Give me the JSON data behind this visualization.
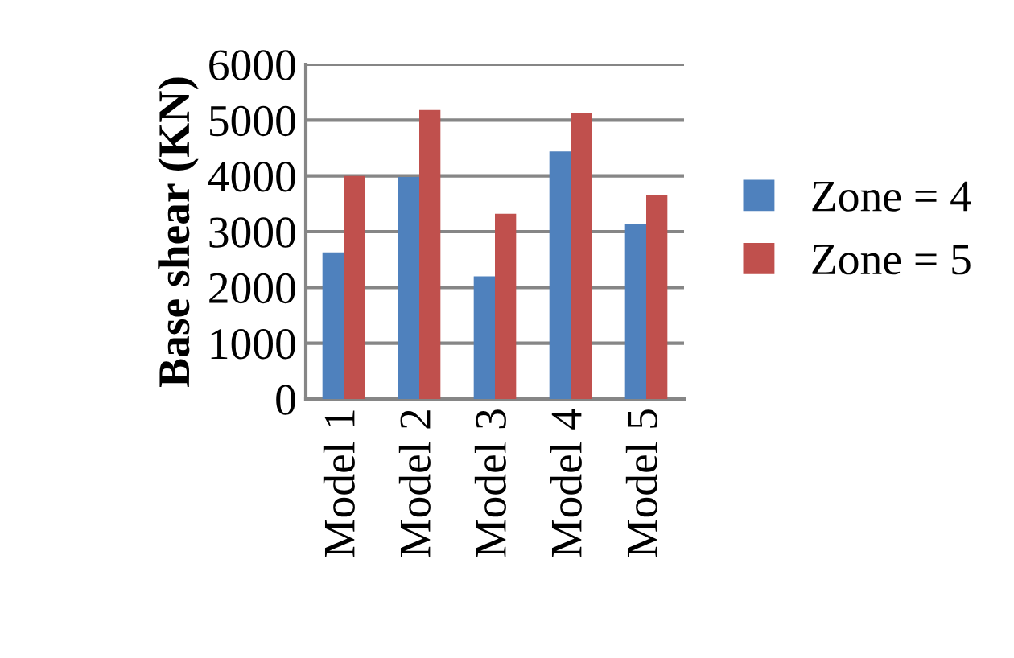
{
  "chart_data": {
    "type": "bar",
    "ylabel": "Base shear (KN)",
    "categories": [
      "Model 1",
      "Model 2",
      "Model 3",
      "Model 4",
      "Model 5"
    ],
    "series": [
      {
        "name": "Zone = 4",
        "color": "#4f81bd",
        "values": [
          2630,
          3980,
          2200,
          4440,
          3130
        ]
      },
      {
        "name": "Zone = 5",
        "color": "#c0504d",
        "values": [
          4000,
          5180,
          3320,
          5130,
          3650
        ]
      }
    ],
    "ylim": [
      0,
      6000
    ],
    "yticks": [
      0,
      1000,
      2000,
      3000,
      4000,
      5000,
      6000
    ],
    "grid": "y",
    "legend": "right"
  }
}
